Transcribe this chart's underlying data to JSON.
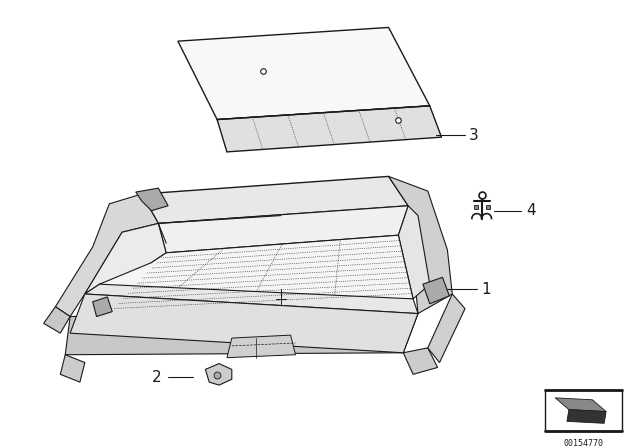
{
  "background_color": "#ffffff",
  "line_color": "#1a1a1a",
  "figure_width": 6.4,
  "figure_height": 4.48,
  "dpi": 100,
  "watermark_text": "00154770"
}
